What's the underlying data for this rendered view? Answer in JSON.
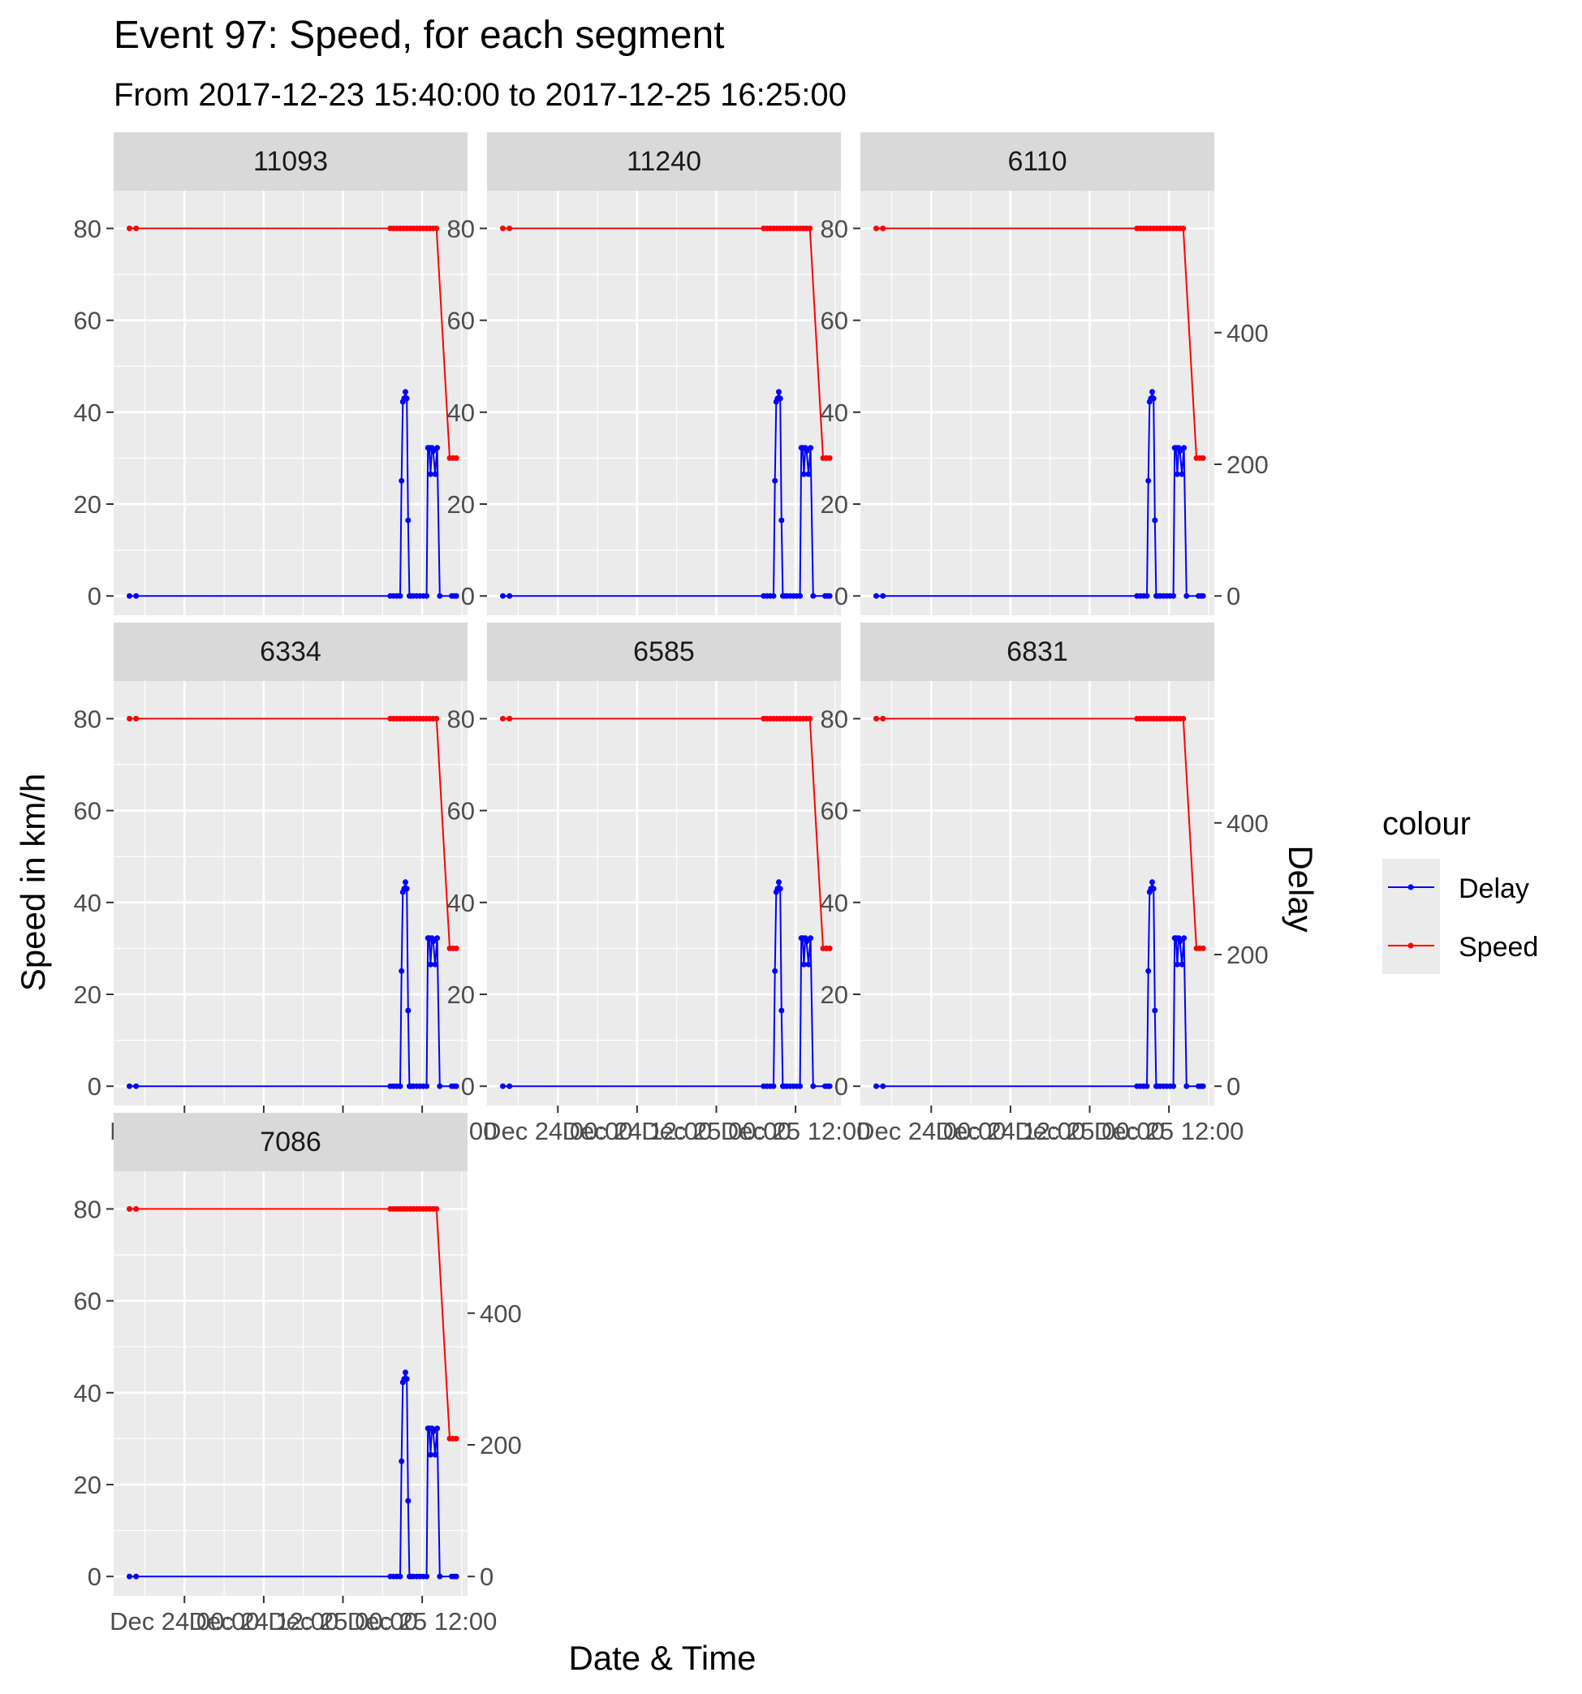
{
  "chart_data": {
    "type": "line",
    "title": "Event 97: Speed, for each segment",
    "subtitle": "From 2017-12-23 15:40:00 to 2017-12-25 16:25:00",
    "xlabel": "Date & Time",
    "ylabel": "Speed in km/h",
    "y2label": "Delay",
    "x_unit": "hours since 2017-12-23 15:40",
    "xlim": [
      -2.4,
      51.2
    ],
    "x_ticks": [
      8.33,
      20.33,
      32.33,
      44.33
    ],
    "x_tick_labels": [
      "Dec 24 00:00",
      "Dec 24 12:00",
      "Dec 25 00:00",
      "Dec 25 12:00"
    ],
    "ylim": [
      -4.2,
      88.2
    ],
    "y_ticks": [
      0,
      20,
      40,
      60,
      80
    ],
    "y_tick_labels": [
      "0",
      "20",
      "40",
      "60",
      "80"
    ],
    "y2_ticks": [
      0,
      200,
      400
    ],
    "y2_tick_labels": [
      "0",
      "200",
      "400"
    ],
    "y2_factor": 0.1433,
    "panels": [
      "11093",
      "11240",
      "6110",
      "6334",
      "6585",
      "6831",
      "7086"
    ],
    "series": [
      {
        "name": "Speed",
        "color": "#ff0000",
        "x": [
          0,
          1,
          39.5,
          40,
          40.5,
          41,
          41.5,
          42,
          42.5,
          43,
          43.5,
          44,
          44.5,
          45,
          45.5,
          46,
          46.5,
          48.5,
          49,
          49.5
        ],
        "values": [
          80,
          80,
          80,
          80,
          80,
          80,
          80,
          80,
          80,
          80,
          80,
          80,
          80,
          80,
          80,
          80,
          80,
          30,
          30,
          30
        ]
      },
      {
        "name": "Delay",
        "color": "#0000ff",
        "x": [
          0,
          1,
          39.5,
          40,
          40.5,
          41,
          41.2,
          41.4,
          41.6,
          41.8,
          42,
          42.2,
          42.4,
          42.6,
          43,
          43.5,
          44,
          44.5,
          45,
          45.2,
          45.4,
          45.6,
          45.8,
          46,
          46.3,
          46.6,
          47,
          48.8,
          49.2,
          49.5
        ],
        "values": [
          0,
          0,
          0,
          0,
          0,
          0,
          175,
          295,
          300,
          310,
          300,
          115,
          0,
          0,
          0,
          0,
          0,
          0,
          0,
          225,
          225,
          185,
          225,
          220,
          185,
          225,
          0,
          0,
          0,
          0
        ]
      }
    ],
    "legend": {
      "title": "colour",
      "entries": [
        "Delay",
        "Speed"
      ],
      "placement": "right"
    }
  }
}
